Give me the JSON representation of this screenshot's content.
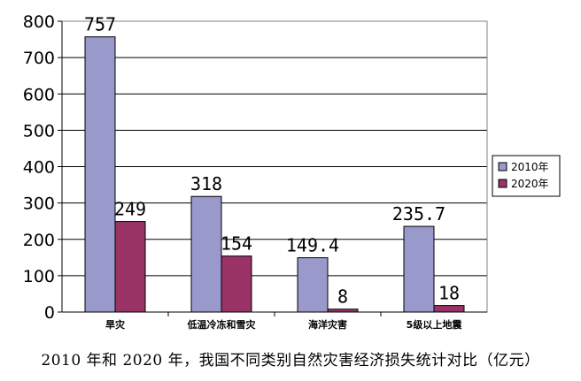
{
  "chart_data": {
    "type": "bar",
    "title": "2010 年和 2020 年，我国不同类别自然灾害经济损失统计对比（亿元）",
    "categories": [
      "旱灾",
      "低温冷冻和雪灾",
      "海洋灾害",
      "5级以上地震"
    ],
    "series": [
      {
        "name": "2010年",
        "values": [
          757,
          318,
          149.4,
          235.7
        ],
        "labels": [
          "757",
          "318",
          "149.4",
          "235.7"
        ],
        "color": "#9999cc"
      },
      {
        "name": "2020年",
        "values": [
          249,
          154,
          8,
          18
        ],
        "labels": [
          "249",
          "154",
          "8",
          "18"
        ],
        "color": "#993366"
      }
    ],
    "ylim": [
      0,
      800
    ],
    "yticks": [
      0,
      100,
      200,
      300,
      400,
      500,
      600,
      700,
      800
    ],
    "grid": true,
    "legend": "right"
  }
}
